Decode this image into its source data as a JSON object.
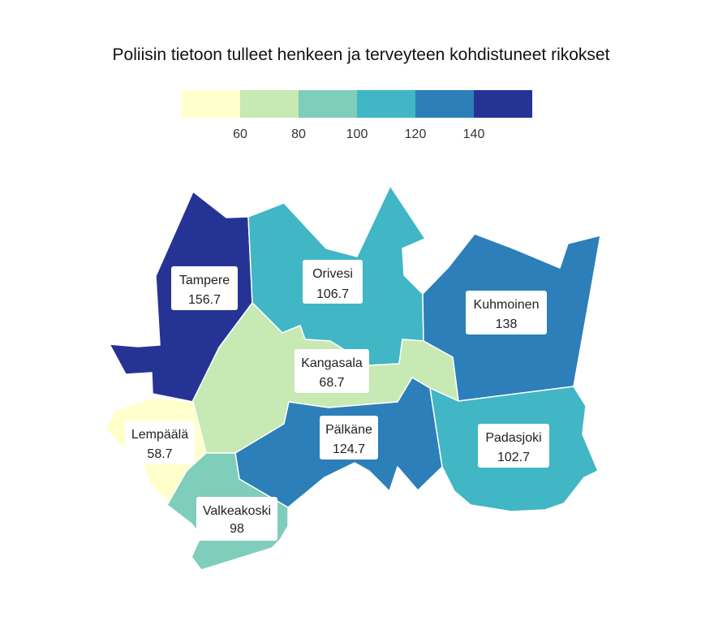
{
  "title": "Poliisin tietoon tulleet henkeen ja terveyteen kohdistuneet rikokset",
  "legend": {
    "colors": [
      "#ffffcc",
      "#c7e9b4",
      "#7fcdbb",
      "#41b6c4",
      "#2c7fb8",
      "#253494"
    ],
    "ticks": [
      "60",
      "80",
      "100",
      "120",
      "140"
    ]
  },
  "chart_data": {
    "type": "choropleth",
    "title": "Poliisin tietoon tulleet henkeen ja terveyteen kohdistuneet rikokset",
    "bins": [
      40,
      60,
      80,
      100,
      120,
      140,
      160
    ],
    "regions": [
      {
        "name": "Tampere",
        "value_label": "156.7",
        "value": 156.7,
        "color": "#253494"
      },
      {
        "name": "Orivesi",
        "value_label": "106.7",
        "value": 106.7,
        "color": "#41b6c4"
      },
      {
        "name": "Kuhmoinen",
        "value_label": "138",
        "value": 138,
        "color": "#2c7fb8"
      },
      {
        "name": "Kangasala",
        "value_label": "68.7",
        "value": 68.7,
        "color": "#c7e9b4"
      },
      {
        "name": "Lempäälä",
        "value_label": "58.7",
        "value": 58.7,
        "color": "#ffffcc"
      },
      {
        "name": "Pälkäne",
        "value_label": "124.7",
        "value": 124.7,
        "color": "#2c7fb8"
      },
      {
        "name": "Padasjoki",
        "value_label": "102.7",
        "value": 102.7,
        "color": "#41b6c4"
      },
      {
        "name": "Valkeakoski",
        "value_label": "98",
        "value": 98,
        "color": "#7fcdbb"
      }
    ]
  }
}
